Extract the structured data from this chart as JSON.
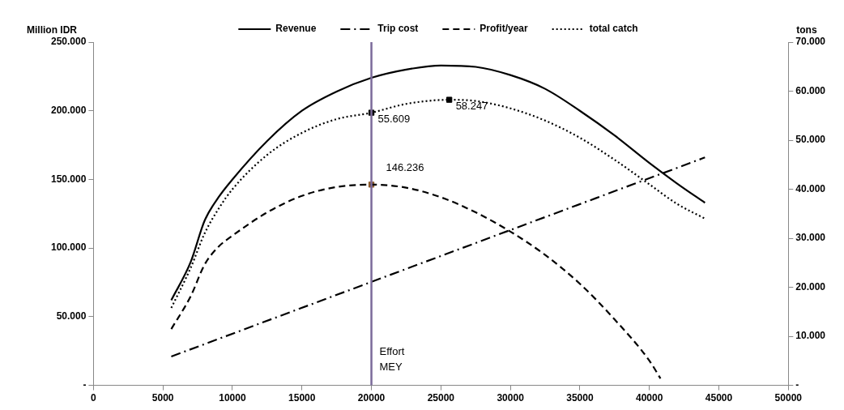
{
  "chart_data": {
    "type": "line",
    "ylabel": "Million IDR",
    "y2label": "tons",
    "legend": "top",
    "grid": false,
    "marker": "none",
    "xlim": [
      0,
      50000
    ],
    "xticks": [
      0,
      5000,
      10000,
      15000,
      20000,
      25000,
      30000,
      35000,
      40000,
      45000,
      50000
    ],
    "ylim": [
      0,
      250000
    ],
    "yticks": [
      {
        "value": 0,
        "label": "-"
      },
      {
        "value": 50000,
        "label": "50.000"
      },
      {
        "value": 100000,
        "label": "100.000"
      },
      {
        "value": 150000,
        "label": "150.000"
      },
      {
        "value": 200000,
        "label": "200.000"
      },
      {
        "value": 250000,
        "label": "250.000"
      }
    ],
    "y2lim": [
      0,
      70000
    ],
    "y2ticks": [
      {
        "value": 0,
        "label": "-"
      },
      {
        "value": 10000,
        "label": "10.000"
      },
      {
        "value": 20000,
        "label": "20.000"
      },
      {
        "value": 30000,
        "label": "30.000"
      },
      {
        "value": 40000,
        "label": "40.000"
      },
      {
        "value": 50000,
        "label": "50.000"
      },
      {
        "value": 60000,
        "label": "60.000"
      },
      {
        "value": 70000,
        "label": "70.000"
      }
    ],
    "series": [
      {
        "name": "Revenue",
        "color": "#000000",
        "line_style": "solid",
        "x": [
          5600,
          7000,
          8000,
          9000,
          10000,
          12500,
          15000,
          17500,
          20000,
          22500,
          25000,
          27500,
          30000,
          32500,
          35000,
          37500,
          40000,
          42000,
          44000
        ],
        "values": [
          62000,
          90000,
          120000,
          137000,
          150000,
          178000,
          200000,
          214000,
          224000,
          230000,
          233000,
          232000,
          226000,
          216000,
          200000,
          182000,
          162000,
          147000,
          133000
        ]
      },
      {
        "name": "Trip cost",
        "color": "#000000",
        "line_style": "dashdot",
        "x": [
          5600,
          44000
        ],
        "values": [
          21000,
          166000
        ]
      },
      {
        "name": "Profit/year",
        "color": "#000000",
        "line_style": "dashed",
        "x": [
          5600,
          7000,
          8000,
          9000,
          10000,
          12500,
          15000,
          17500,
          20000,
          22500,
          25000,
          27500,
          30000,
          32500,
          35000,
          37500,
          40000,
          40800
        ],
        "values": [
          41000,
          65000,
          88000,
          101000,
          109000,
          126000,
          138000,
          144500,
          146236,
          144000,
          137000,
          126000,
          112000,
          95000,
          74000,
          48000,
          18000,
          5000
        ]
      },
      {
        "name": "total catch",
        "color": "#000000",
        "line_style": "dotted",
        "axis": "y2",
        "x": [
          5600,
          7000,
          8000,
          9000,
          10000,
          12500,
          15000,
          17500,
          20000,
          22500,
          25600,
          27500,
          30000,
          32500,
          35000,
          37500,
          40000,
          42000,
          44000
        ],
        "values": [
          15800,
          24000,
          31000,
          36000,
          40000,
          47000,
          51500,
          54300,
          55609,
          57400,
          58247,
          58000,
          56500,
          54000,
          50500,
          46000,
          41000,
          37000,
          34000
        ]
      },
      {
        "type": "scatter",
        "marker": "square",
        "color": "#000000",
        "axis": "y2",
        "x": [
          20000,
          25600
        ],
        "values": [
          55609,
          58247
        ],
        "value_labels": [
          "55.609",
          "58.247"
        ]
      },
      {
        "type": "scatter",
        "marker": "square",
        "color": "#8b5a2b",
        "x": [
          20000
        ],
        "values": [
          146236
        ],
        "value_labels": [
          "146.236"
        ]
      }
    ],
    "ref_lines": [
      {
        "axis": "x",
        "value": 20000,
        "label": "Effort MEY",
        "color": "#7b6a9a"
      }
    ]
  }
}
